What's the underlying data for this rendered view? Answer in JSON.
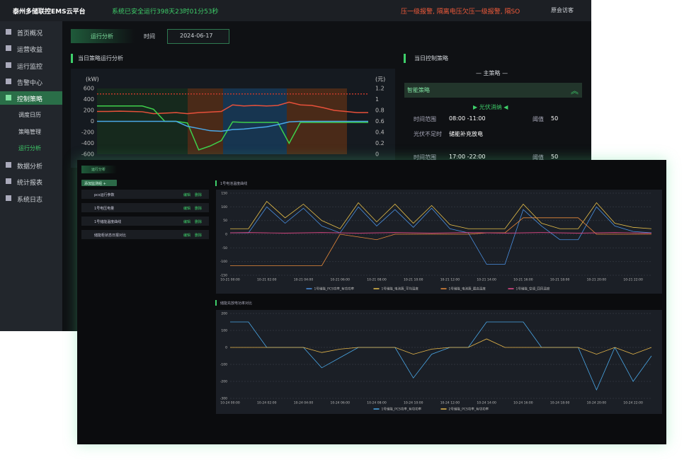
{
  "back": {
    "header": {
      "title": "泰州多储联控EMS云平台",
      "status": "系统已安全运行398天23时01分53秒",
      "alarm": "压一级报警, 隔离电压欠压一级报警, 隔SO",
      "user": "原会访客"
    },
    "nav": [
      "首页概况",
      "运营收益",
      "运行监控",
      "告警中心",
      "控制策略",
      "调度日历",
      "策略管理",
      "运行分析",
      "数据分析",
      "统计报表",
      "系统日志"
    ],
    "tab": "运行分析",
    "time_label": "时间",
    "date": "2024-06-17",
    "section_title": "当日策略运行分析",
    "strategy": {
      "title": "当日控制策略",
      "main": "— 主策略 —",
      "box": "智能策略",
      "mode": "▶ 光伏消纳 ◀",
      "rows": [
        [
          "时间范围",
          "08:00 -11:00",
          "阈值",
          "50"
        ],
        [
          "光伏不足时",
          "储能补充放电"
        ],
        [
          "时间范围",
          "17:00 -22:00",
          "阈值",
          "50"
        ]
      ]
    }
  },
  "front": {
    "tab": "运行分析",
    "add_button": "添加监测组 +",
    "groups": [
      {
        "name": "pcs运行参数",
        "edit": "编辑",
        "delete": "删除"
      },
      {
        "name": "1号电压电量",
        "edit": "编辑",
        "delete": "删除"
      },
      {
        "name": "1号储能温度曲线",
        "edit": "编辑",
        "delete": "删除"
      },
      {
        "name": "储能柜状态日报对比",
        "edit": "编辑",
        "delete": "删除"
      }
    ]
  },
  "chart_data": [
    {
      "type": "line",
      "ylabel": "(kW)",
      "y2label": "(元)",
      "ylim": [
        -600,
        600
      ],
      "yticks": [
        600,
        400,
        200,
        0,
        -200,
        -400,
        -600
      ],
      "y2lim": [
        0,
        1.2
      ],
      "y2ticks": [
        1.2,
        1,
        0.8,
        0.6,
        0.4,
        0.2,
        0
      ],
      "grid": false,
      "series": [
        {
          "color": "#e8503a",
          "values": [
            180,
            180,
            185,
            180,
            175,
            140,
            150,
            160,
            140,
            160,
            170,
            180,
            300,
            280,
            290,
            280,
            290,
            350,
            300,
            290,
            250,
            200,
            180,
            160,
            160
          ]
        },
        {
          "color": "#3ecf4a",
          "values": [
            280,
            280,
            280,
            280,
            280,
            220,
            0,
            0,
            -30,
            -520,
            -450,
            -350,
            -10,
            -20,
            -20,
            -20,
            -20,
            -400,
            -20,
            -20,
            -20,
            -20,
            -20,
            -20,
            -20
          ]
        },
        {
          "color": "#4aa8e8",
          "values": [
            0,
            0,
            0,
            0,
            0,
            0,
            0,
            0,
            -90,
            -130,
            -170,
            -180,
            -150,
            -140,
            -120,
            -100,
            -60,
            -10,
            0,
            0,
            0,
            0,
            0,
            0,
            0
          ]
        },
        {
          "color": "#c0392b",
          "axis": "y2",
          "dashed": true,
          "values": [
            1.1,
            1.1,
            1.1,
            1.1,
            1.1,
            1.1,
            1.1,
            1.1,
            1.1,
            1.1,
            1.1,
            1.1,
            1.1,
            1.1,
            1.1,
            1.1,
            1.1,
            1.1,
            1.1,
            1.1,
            1.1,
            1.1,
            1.1,
            1.1,
            1.1
          ]
        }
      ]
    },
    {
      "type": "line",
      "title": "1号电池温度曲线",
      "ylim": [
        -150,
        150
      ],
      "yticks": [
        150,
        100,
        50,
        0,
        -50,
        -100,
        -150
      ],
      "grid": true,
      "categories": [
        "10-21 00:00",
        null,
        "10-21 02:00",
        null,
        "10-21 04:00",
        null,
        "10-21 06:00",
        null,
        "10-21 08:00",
        null,
        "10-21 10:00",
        null,
        "10-21 12:00",
        null,
        "10-21 14:00",
        null,
        "10-21 16:00",
        null,
        "10-21 18:00",
        null,
        "10-21 20:00",
        null,
        "10-21 22:00",
        null
      ],
      "series": [
        {
          "name": "1号储能_PCS功率_有功功率",
          "color": "#4a90e2",
          "values": [
            5,
            5,
            100,
            40,
            95,
            30,
            5,
            100,
            30,
            90,
            25,
            95,
            20,
            5,
            -110,
            -110,
            90,
            30,
            -20,
            -20,
            100,
            30,
            10,
            5
          ]
        },
        {
          "name": "1号储能_电池簇_平均温度",
          "color": "#e8c04a",
          "values": [
            20,
            20,
            120,
            60,
            110,
            50,
            20,
            115,
            45,
            110,
            40,
            105,
            35,
            20,
            20,
            20,
            110,
            40,
            20,
            20,
            115,
            40,
            25,
            20
          ]
        },
        {
          "name": "1号储能_电池簇_最高温度",
          "color": "#e88a3a",
          "values": [
            -115,
            -115,
            -115,
            -115,
            -115,
            -115,
            0,
            -10,
            -20,
            0,
            0,
            0,
            0,
            0,
            5,
            5,
            60,
            60,
            60,
            60,
            0,
            0,
            0,
            0
          ]
        },
        {
          "name": "1号储能_空调_回风温度",
          "color": "#e84a8a",
          "values": [
            5,
            6,
            5,
            4,
            5,
            6,
            5,
            4,
            5,
            6,
            5,
            4,
            5,
            6,
            5,
            4,
            5,
            6,
            5,
            4,
            5,
            6,
            5,
            4
          ]
        }
      ]
    },
    {
      "type": "line",
      "title": "储能充放电功率对比",
      "ylim": [
        -300,
        200
      ],
      "yticks": [
        200,
        100,
        0,
        -100,
        -200,
        -300
      ],
      "grid": true,
      "categories": [
        "10-24 00:00",
        null,
        "10-24 02:00",
        null,
        "10-24 04:00",
        null,
        "10-24 06:00",
        null,
        "10-24 08:00",
        null,
        "10-24 10:00",
        null,
        "10-24 12:00",
        null,
        "10-24 14:00",
        null,
        "10-24 16:00",
        null,
        "10-24 18:00",
        null,
        "10-24 20:00",
        null,
        "10-24 22:00",
        null
      ],
      "series": [
        {
          "name": "1号储能_PCS功率_有功功率",
          "color": "#4aa8e8",
          "values": [
            150,
            150,
            0,
            0,
            0,
            -120,
            -60,
            0,
            0,
            0,
            -180,
            -40,
            0,
            0,
            150,
            150,
            150,
            0,
            0,
            0,
            -250,
            0,
            -200,
            -50
          ]
        },
        {
          "name": "2号储能_PCS功率_有功功率",
          "color": "#e8b84a",
          "values": [
            0,
            0,
            0,
            0,
            0,
            -30,
            -10,
            0,
            0,
            0,
            -40,
            -10,
            0,
            0,
            50,
            0,
            0,
            0,
            0,
            0,
            -40,
            0,
            -40,
            0
          ]
        }
      ]
    }
  ]
}
